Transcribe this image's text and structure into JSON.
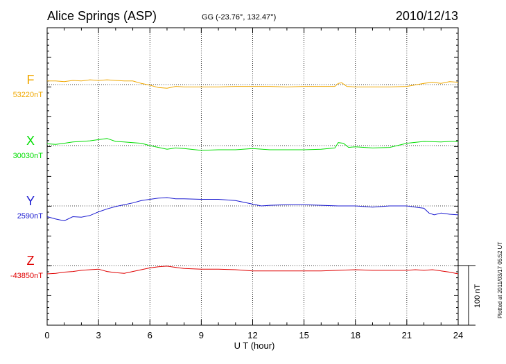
{
  "chart_data": {
    "type": "line",
    "title": "Alice Springs (ASP)",
    "coords": "GG (-23.76°, 132.47°)",
    "date": "2010/12/13",
    "xlabel": "U T (hour)",
    "xlim": [
      0,
      24
    ],
    "xticks": [
      0,
      3,
      6,
      9,
      12,
      15,
      18,
      21,
      24
    ],
    "x_tick_labels": [
      "0",
      "3",
      "6",
      "9",
      "12",
      "15",
      "18",
      "21",
      "24"
    ],
    "grid": true,
    "scale_bar_label": "100 nT",
    "scale_bar_nT": 100,
    "plotted_note": "Plotted at 2011/03/17 05:52 UT",
    "series": [
      {
        "name": "F",
        "baseline_label": "53220nT",
        "baseline_nT": 53220,
        "color": "#f0a800",
        "points": [
          [
            0,
            53226
          ],
          [
            0.5,
            53226
          ],
          [
            1,
            53225
          ],
          [
            1.5,
            53227
          ],
          [
            2,
            53226
          ],
          [
            2.5,
            53228
          ],
          [
            3,
            53227
          ],
          [
            3.5,
            53228
          ],
          [
            4,
            53227
          ],
          [
            4.5,
            53226
          ],
          [
            5,
            53226
          ],
          [
            5.5,
            53222
          ],
          [
            6,
            53219
          ],
          [
            6.5,
            53215
          ],
          [
            7,
            53214
          ],
          [
            7.5,
            53217
          ],
          [
            8,
            53216
          ],
          [
            9,
            53216
          ],
          [
            10,
            53216
          ],
          [
            11,
            53217
          ],
          [
            12,
            53217
          ],
          [
            13,
            53217
          ],
          [
            14,
            53216
          ],
          [
            15,
            53217
          ],
          [
            16,
            53217
          ],
          [
            16.8,
            53217
          ],
          [
            17,
            53222
          ],
          [
            17.2,
            53223
          ],
          [
            17.5,
            53217
          ],
          [
            18,
            53216
          ],
          [
            19,
            53216
          ],
          [
            20,
            53216
          ],
          [
            21,
            53217
          ],
          [
            22,
            53222
          ],
          [
            22.5,
            53224
          ],
          [
            23,
            53222
          ],
          [
            23.5,
            53225
          ],
          [
            24,
            53224
          ]
        ]
      },
      {
        "name": "X",
        "baseline_label": "30030nT",
        "baseline_nT": 30030,
        "color": "#00dd00",
        "points": [
          [
            0,
            30033
          ],
          [
            0.5,
            30032
          ],
          [
            1,
            30034
          ],
          [
            1.5,
            30036
          ],
          [
            2,
            30037
          ],
          [
            2.5,
            30038
          ],
          [
            3,
            30040
          ],
          [
            3.5,
            30042
          ],
          [
            4,
            30037
          ],
          [
            4.5,
            30036
          ],
          [
            5,
            30035
          ],
          [
            5.5,
            30034
          ],
          [
            6,
            30030
          ],
          [
            6.5,
            30027
          ],
          [
            7,
            30024
          ],
          [
            7.5,
            30026
          ],
          [
            8,
            30025
          ],
          [
            9,
            30022
          ],
          [
            10,
            30023
          ],
          [
            11,
            30023
          ],
          [
            12,
            30025
          ],
          [
            13,
            30023
          ],
          [
            14,
            30023
          ],
          [
            15,
            30023
          ],
          [
            16,
            30024
          ],
          [
            16.8,
            30026
          ],
          [
            17,
            30035
          ],
          [
            17.3,
            30034
          ],
          [
            17.6,
            30027
          ],
          [
            18,
            30028
          ],
          [
            19,
            30026
          ],
          [
            20,
            30027
          ],
          [
            21,
            30034
          ],
          [
            22,
            30037
          ],
          [
            23,
            30036
          ],
          [
            23.5,
            30037
          ],
          [
            24,
            30037
          ]
        ]
      },
      {
        "name": "Y",
        "baseline_label": "2590nT",
        "baseline_nT": 2590,
        "color": "#1818d0",
        "points": [
          [
            0,
            2572
          ],
          [
            0.5,
            2568
          ],
          [
            1,
            2565
          ],
          [
            1.5,
            2572
          ],
          [
            2,
            2571
          ],
          [
            2.5,
            2574
          ],
          [
            3,
            2580
          ],
          [
            3.5,
            2585
          ],
          [
            4,
            2589
          ],
          [
            4.5,
            2592
          ],
          [
            5,
            2595
          ],
          [
            5.5,
            2599
          ],
          [
            6,
            2601
          ],
          [
            6.5,
            2603
          ],
          [
            7,
            2604
          ],
          [
            7.5,
            2602
          ],
          [
            8,
            2602
          ],
          [
            9,
            2601
          ],
          [
            10,
            2601
          ],
          [
            11,
            2599
          ],
          [
            12,
            2593
          ],
          [
            12.5,
            2590
          ],
          [
            13,
            2591
          ],
          [
            14,
            2592
          ],
          [
            15,
            2592
          ],
          [
            16,
            2591
          ],
          [
            17,
            2590
          ],
          [
            17.5,
            2590
          ],
          [
            18,
            2590
          ],
          [
            19,
            2588
          ],
          [
            20,
            2590
          ],
          [
            21,
            2590
          ],
          [
            21.5,
            2588
          ],
          [
            22,
            2586
          ],
          [
            22.3,
            2578
          ],
          [
            22.6,
            2575
          ],
          [
            23,
            2578
          ],
          [
            23.5,
            2576
          ],
          [
            24,
            2575
          ]
        ]
      },
      {
        "name": "Z",
        "baseline_label": "-43850nT",
        "baseline_nT": -43850,
        "color": "#e00000",
        "points": [
          [
            0,
            -43864
          ],
          [
            0.5,
            -43863
          ],
          [
            1,
            -43861
          ],
          [
            1.5,
            -43860
          ],
          [
            2,
            -43858
          ],
          [
            2.5,
            -43857
          ],
          [
            3,
            -43856
          ],
          [
            3.5,
            -43860
          ],
          [
            4,
            -43862
          ],
          [
            4.5,
            -43863
          ],
          [
            5,
            -43860
          ],
          [
            5.5,
            -43857
          ],
          [
            6,
            -43854
          ],
          [
            6.5,
            -43852
          ],
          [
            7,
            -43851
          ],
          [
            7.5,
            -43853
          ],
          [
            8,
            -43855
          ],
          [
            9,
            -43856
          ],
          [
            10,
            -43856
          ],
          [
            11,
            -43857
          ],
          [
            12,
            -43859
          ],
          [
            13,
            -43859
          ],
          [
            14,
            -43859
          ],
          [
            15,
            -43859
          ],
          [
            16,
            -43859
          ],
          [
            17,
            -43858
          ],
          [
            18,
            -43857
          ],
          [
            19,
            -43858
          ],
          [
            20,
            -43858
          ],
          [
            21,
            -43858
          ],
          [
            21.5,
            -43857
          ],
          [
            22,
            -43858
          ],
          [
            22.5,
            -43857
          ],
          [
            23,
            -43859
          ],
          [
            23.5,
            -43861
          ],
          [
            24,
            -43864
          ]
        ]
      }
    ]
  }
}
